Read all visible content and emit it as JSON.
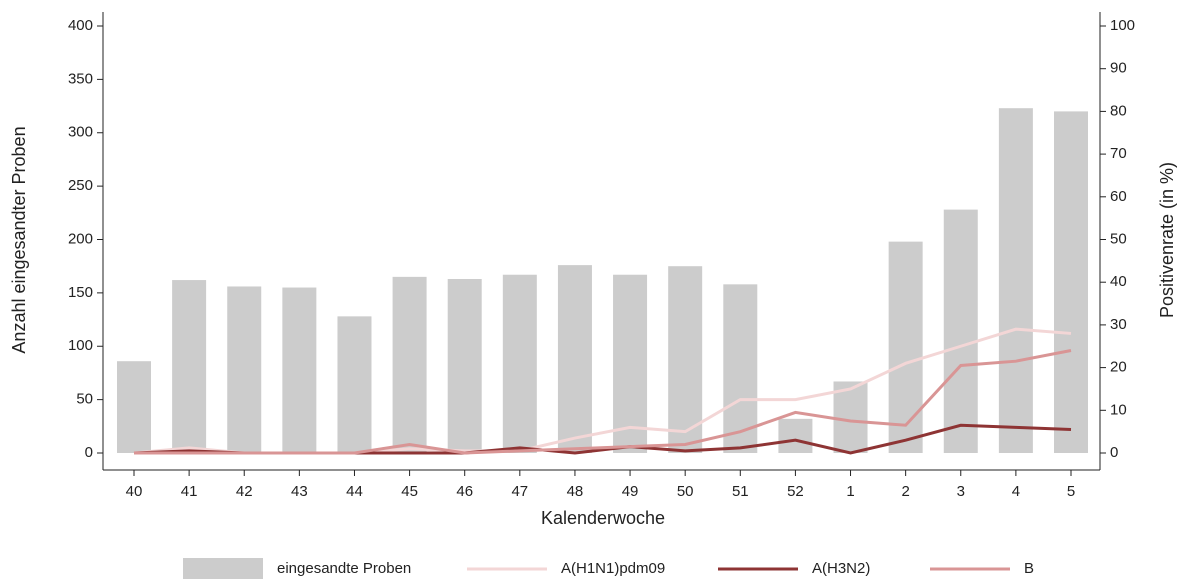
{
  "chart_data": {
    "type": "bar",
    "categories": [
      "40",
      "41",
      "42",
      "43",
      "44",
      "45",
      "46",
      "47",
      "48",
      "49",
      "50",
      "51",
      "52",
      "1",
      "2",
      "3",
      "4",
      "5"
    ],
    "series": [
      {
        "name": "eingesandte Proben",
        "type": "bar",
        "color": "#cccccc",
        "axis": "y",
        "values": [
          86,
          162,
          156,
          155,
          128,
          165,
          163,
          167,
          176,
          167,
          175,
          158,
          32,
          67,
          198,
          228,
          323,
          320
        ]
      },
      {
        "name": "A(H1N1)pdm09",
        "type": "line",
        "color": "#f3d6d6",
        "axis": "y2",
        "values": [
          0,
          1.2,
          0,
          0,
          0,
          1,
          0.5,
          0.5,
          3.5,
          6,
          5,
          12.5,
          12.5,
          15,
          21,
          25,
          29,
          28
        ]
      },
      {
        "name": "A(H3N2)",
        "type": "line",
        "color": "#8e3434",
        "axis": "y2",
        "values": [
          0,
          0.5,
          0,
          0,
          0,
          0,
          0,
          1.2,
          0,
          1.5,
          0.5,
          1.2,
          3,
          0,
          3,
          6.5,
          6,
          5.5
        ]
      },
      {
        "name": "B",
        "type": "line",
        "color": "#d99595",
        "axis": "y2",
        "values": [
          0,
          0,
          0,
          0,
          0,
          2,
          0,
          0.5,
          1,
          1.5,
          2,
          5,
          9.5,
          7.5,
          6.5,
          20.5,
          21.5,
          24
        ]
      }
    ],
    "x_label": "Kalenderwoche",
    "y_label": "Anzahl eingesandter Proben",
    "y2_label": "Positivenrate (in %)",
    "ylim": [
      0,
      400
    ],
    "yticks": [
      0,
      50,
      100,
      150,
      200,
      250,
      300,
      350,
      400
    ],
    "y2lim": [
      0,
      100
    ],
    "y2ticks": [
      0,
      10,
      20,
      30,
      40,
      50,
      60,
      70,
      80,
      90,
      100
    ],
    "legend": "bottom"
  }
}
